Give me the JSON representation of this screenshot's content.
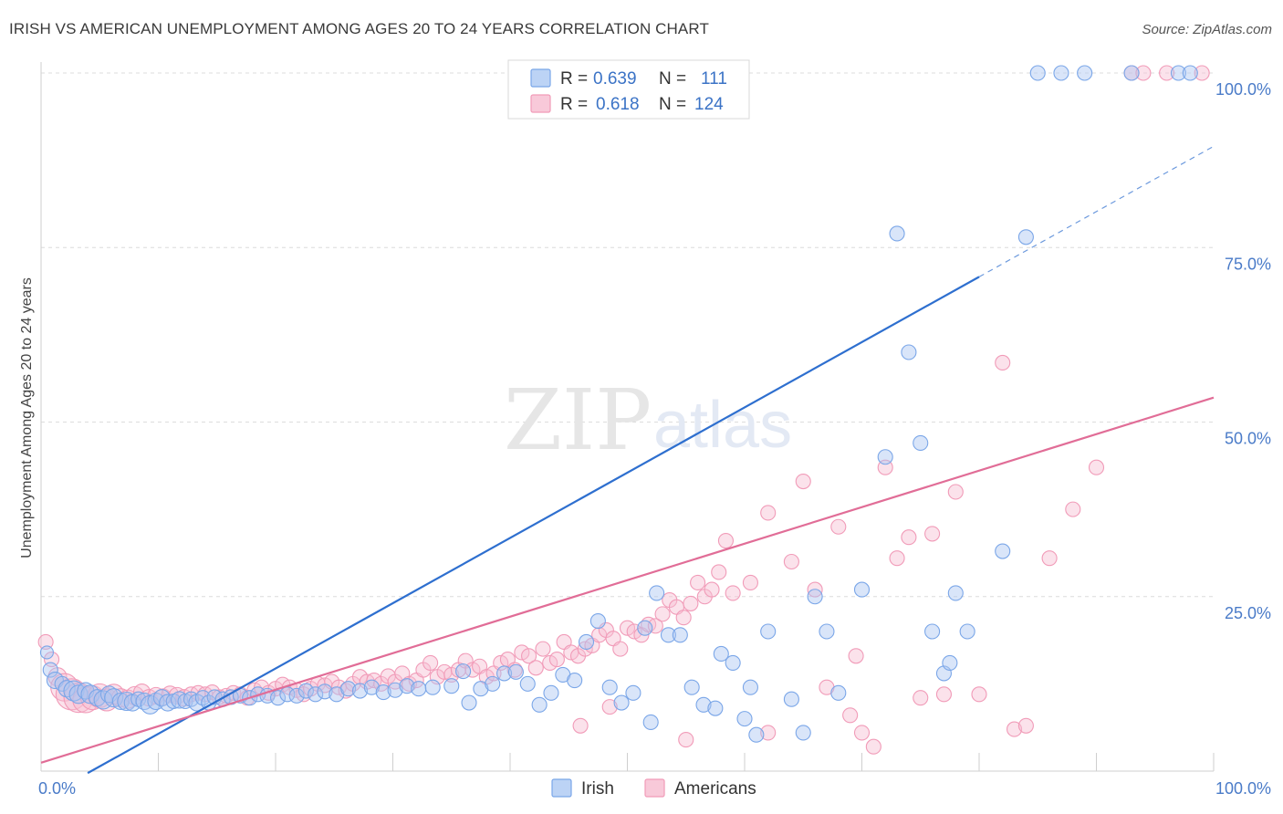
{
  "title": "IRISH VS AMERICAN UNEMPLOYMENT AMONG AGES 20 TO 24 YEARS CORRELATION CHART",
  "source": "Source: ZipAtlas.com",
  "watermark": {
    "zip": "ZIP",
    "atlas": "atlas"
  },
  "legend_top": [
    {
      "r_label": "R =",
      "r_value": "0.639",
      "n_label": "N =",
      "n_value": "111",
      "color": "#7aa6e8"
    },
    {
      "r_label": "R =",
      "r_value": "0.618",
      "n_label": "N =",
      "n_value": "124",
      "color": "#f19bb8"
    }
  ],
  "legend_bottom": [
    {
      "label": "Irish",
      "color": "#7aa6e8"
    },
    {
      "label": "Americans",
      "color": "#f19bb8"
    }
  ],
  "chart_data": {
    "type": "scatter",
    "title": "IRISH VS AMERICAN UNEMPLOYMENT AMONG AGES 20 TO 24 YEARS CORRELATION CHART",
    "xlabel": "",
    "ylabel": "Unemployment Among Ages 20 to 24 years",
    "xlim": [
      0,
      100
    ],
    "ylim": [
      0,
      100
    ],
    "x_tick_labels": [
      "0.0%",
      "100.0%"
    ],
    "y_tick_labels": [
      "25.0%",
      "50.0%",
      "75.0%",
      "100.0%"
    ],
    "y_ticks": [
      25,
      50,
      75,
      100
    ],
    "series": [
      {
        "name": "Irish",
        "color": "#7aa6e8",
        "trend_color": "#2e6fcf",
        "trend": {
          "x0": 0,
          "y0": -4.0,
          "x1": 80,
          "y1": 70.8,
          "dash_to_x": 100,
          "dash_to_y": 89.5
        },
        "points": [
          [
            0.5,
            17,
            6
          ],
          [
            0.8,
            14.5,
            7
          ],
          [
            1.2,
            13,
            8
          ],
          [
            1.8,
            12.5,
            7
          ],
          [
            2.2,
            11.8,
            8
          ],
          [
            2.8,
            11.5,
            10
          ],
          [
            3.2,
            11,
            9
          ],
          [
            3.8,
            11.5,
            8
          ],
          [
            4.2,
            11,
            9
          ],
          [
            4.8,
            10.5,
            8
          ],
          [
            5.3,
            10.2,
            9
          ],
          [
            5.8,
            11,
            8
          ],
          [
            6.2,
            10.5,
            9
          ],
          [
            6.8,
            10,
            8
          ],
          [
            7.3,
            10,
            9
          ],
          [
            7.8,
            9.8,
            8
          ],
          [
            8.3,
            10.3,
            7
          ],
          [
            8.8,
            10,
            8
          ],
          [
            9.3,
            9.5,
            9
          ],
          [
            9.8,
            10,
            8
          ],
          [
            10.3,
            10.5,
            8
          ],
          [
            10.8,
            9.8,
            8
          ],
          [
            11.3,
            10,
            7
          ],
          [
            11.8,
            10.2,
            8
          ],
          [
            12.3,
            10,
            7
          ],
          [
            12.8,
            10.3,
            7
          ],
          [
            13.3,
            9.8,
            8
          ],
          [
            13.8,
            10.5,
            7
          ],
          [
            14.3,
            9.8,
            7
          ],
          [
            14.8,
            10.6,
            7
          ],
          [
            15.5,
            10.3,
            7
          ],
          [
            16.2,
            10.6,
            7
          ],
          [
            17,
            10.8,
            7
          ],
          [
            17.8,
            10.5,
            7
          ],
          [
            18.5,
            11,
            7
          ],
          [
            19.3,
            10.8,
            7
          ],
          [
            20.2,
            10.5,
            7
          ],
          [
            21,
            11,
            7
          ],
          [
            21.8,
            10.8,
            7
          ],
          [
            22.6,
            11.5,
            7
          ],
          [
            23.4,
            11,
            7
          ],
          [
            24.2,
            11.4,
            7
          ],
          [
            25.2,
            11,
            7
          ],
          [
            26.2,
            11.8,
            7
          ],
          [
            27.2,
            11.5,
            7
          ],
          [
            28.2,
            12,
            7
          ],
          [
            29.2,
            11.3,
            7
          ],
          [
            30.2,
            11.6,
            7
          ],
          [
            31.2,
            12.2,
            7
          ],
          [
            32.2,
            11.8,
            7
          ],
          [
            33.4,
            12,
            7
          ],
          [
            35,
            12.2,
            7
          ],
          [
            36,
            14.3,
            7
          ],
          [
            36.5,
            9.8,
            7
          ],
          [
            37.5,
            11.8,
            7
          ],
          [
            38.5,
            12.5,
            7
          ],
          [
            39.5,
            14,
            7
          ],
          [
            40.5,
            14.2,
            7
          ],
          [
            41.5,
            12.5,
            7
          ],
          [
            42.5,
            9.5,
            7
          ],
          [
            43.5,
            11.2,
            7
          ],
          [
            44.5,
            13.8,
            7
          ],
          [
            45.5,
            13,
            7
          ],
          [
            46.5,
            18.5,
            7
          ],
          [
            47.5,
            21.5,
            7
          ],
          [
            48.5,
            12,
            7
          ],
          [
            49.5,
            9.8,
            7
          ],
          [
            50.5,
            11.2,
            7
          ],
          [
            51.5,
            20.5,
            7
          ],
          [
            52,
            7,
            7
          ],
          [
            52.5,
            25.5,
            7
          ],
          [
            53.5,
            19.5,
            7
          ],
          [
            54.5,
            19.5,
            7
          ],
          [
            55.5,
            12,
            7
          ],
          [
            56.5,
            9.5,
            7
          ],
          [
            57.5,
            9,
            7
          ],
          [
            58,
            16.8,
            7
          ],
          [
            59,
            15.5,
            7
          ],
          [
            60,
            7.5,
            7
          ],
          [
            60.5,
            12,
            7
          ],
          [
            61,
            5.2,
            7
          ],
          [
            62,
            20,
            7
          ],
          [
            64,
            10.3,
            7
          ],
          [
            65,
            5.5,
            7
          ],
          [
            66,
            25,
            7
          ],
          [
            67,
            20,
            7
          ],
          [
            68,
            11.2,
            7
          ],
          [
            70,
            26,
            7
          ],
          [
            72,
            45,
            7
          ],
          [
            73,
            77,
            7
          ],
          [
            74,
            60,
            7
          ],
          [
            75,
            47,
            7
          ],
          [
            76,
            20,
            7
          ],
          [
            77,
            14,
            7
          ],
          [
            77.5,
            15.5,
            7
          ],
          [
            78,
            25.5,
            7
          ],
          [
            79,
            20,
            7
          ],
          [
            82,
            31.5,
            7
          ],
          [
            84,
            76.5,
            7
          ],
          [
            85,
            100,
            7
          ],
          [
            87,
            100,
            7
          ],
          [
            89,
            100,
            7
          ],
          [
            93,
            100,
            7
          ],
          [
            97,
            100,
            7
          ],
          [
            98,
            100,
            7
          ]
        ]
      },
      {
        "name": "Americans",
        "color": "#f19bb8",
        "trend_color": "#e16d97",
        "trend": {
          "x0": 0,
          "y0": 1.2,
          "x1": 100,
          "y1": 53.5
        },
        "points": [
          [
            0.4,
            18.5,
            7
          ],
          [
            0.9,
            16,
            7
          ],
          [
            1.4,
            13.5,
            9
          ],
          [
            2,
            12,
            14
          ],
          [
            2.6,
            11,
            16
          ],
          [
            3.2,
            10.5,
            15
          ],
          [
            3.8,
            10.2,
            13
          ],
          [
            4.4,
            10.5,
            12
          ],
          [
            5,
            10.8,
            12
          ],
          [
            5.6,
            10.2,
            11
          ],
          [
            6.2,
            11,
            10
          ],
          [
            6.8,
            10.5,
            9
          ],
          [
            7.4,
            10.3,
            9
          ],
          [
            8,
            10.8,
            9
          ],
          [
            8.6,
            11.3,
            8
          ],
          [
            9.2,
            10.5,
            8
          ],
          [
            9.8,
            10.8,
            8
          ],
          [
            10.4,
            10.6,
            8
          ],
          [
            11,
            11,
            8
          ],
          [
            11.6,
            10.8,
            8
          ],
          [
            12.2,
            10.5,
            8
          ],
          [
            12.8,
            11,
            7
          ],
          [
            13.4,
            11.2,
            7
          ],
          [
            14,
            11,
            7
          ],
          [
            14.6,
            11.3,
            7
          ],
          [
            15.2,
            10.6,
            7
          ],
          [
            15.8,
            10.8,
            7
          ],
          [
            16.4,
            11.2,
            7
          ],
          [
            17,
            11,
            7
          ],
          [
            17.6,
            10.5,
            7
          ],
          [
            18.2,
            11.6,
            7
          ],
          [
            18.8,
            12,
            7
          ],
          [
            19.4,
            11.2,
            7
          ],
          [
            20,
            11.8,
            7
          ],
          [
            20.6,
            12.4,
            7
          ],
          [
            21.2,
            12,
            7
          ],
          [
            21.8,
            11.6,
            7
          ],
          [
            22.4,
            11,
            7
          ],
          [
            23,
            11.8,
            7
          ],
          [
            23.6,
            12.5,
            7
          ],
          [
            24.2,
            12.3,
            7
          ],
          [
            24.8,
            12.8,
            7
          ],
          [
            25.4,
            12,
            7
          ],
          [
            26,
            11.5,
            7
          ],
          [
            26.6,
            12.5,
            7
          ],
          [
            27.2,
            13.5,
            7
          ],
          [
            27.8,
            12.8,
            7
          ],
          [
            28.4,
            13,
            7
          ],
          [
            29,
            12.5,
            7
          ],
          [
            29.6,
            13.6,
            7
          ],
          [
            30.2,
            12.8,
            7
          ],
          [
            30.8,
            14,
            7
          ],
          [
            31.4,
            12.5,
            7
          ],
          [
            32,
            13,
            7
          ],
          [
            32.6,
            14.5,
            7
          ],
          [
            33.2,
            15.5,
            7
          ],
          [
            33.8,
            13.5,
            7
          ],
          [
            34.4,
            14.2,
            7
          ],
          [
            35,
            13.8,
            7
          ],
          [
            35.6,
            14.5,
            7
          ],
          [
            36.2,
            15.8,
            7
          ],
          [
            36.8,
            14.5,
            7
          ],
          [
            37.4,
            15,
            7
          ],
          [
            38,
            13.5,
            7
          ],
          [
            38.6,
            14,
            7
          ],
          [
            39.2,
            15.5,
            7
          ],
          [
            39.8,
            16,
            7
          ],
          [
            40.4,
            14.5,
            7
          ],
          [
            41,
            17,
            7
          ],
          [
            41.6,
            16.5,
            7
          ],
          [
            42.2,
            14.8,
            7
          ],
          [
            42.8,
            17.5,
            7
          ],
          [
            43.4,
            15.5,
            7
          ],
          [
            44,
            16,
            7
          ],
          [
            44.6,
            18.5,
            7
          ],
          [
            45.2,
            17,
            7
          ],
          [
            45.8,
            16.5,
            7
          ],
          [
            46.4,
            17.5,
            7
          ],
          [
            47,
            18,
            7
          ],
          [
            47.6,
            19.5,
            7
          ],
          [
            48.2,
            20.2,
            7
          ],
          [
            48.8,
            19,
            7
          ],
          [
            49.4,
            17.5,
            7
          ],
          [
            50,
            20.5,
            7
          ],
          [
            50.6,
            20,
            7
          ],
          [
            51.2,
            19.5,
            7
          ],
          [
            51.8,
            21,
            7
          ],
          [
            52.4,
            20.8,
            7
          ],
          [
            53,
            22.5,
            7
          ],
          [
            53.6,
            24.5,
            7
          ],
          [
            54.2,
            23.5,
            7
          ],
          [
            54.8,
            22,
            7
          ],
          [
            55.4,
            24,
            7
          ],
          [
            56,
            27,
            7
          ],
          [
            56.6,
            25,
            7
          ],
          [
            57.2,
            26,
            7
          ],
          [
            57.8,
            28.5,
            7
          ],
          [
            58.4,
            33,
            7
          ],
          [
            59,
            25.5,
            7
          ],
          [
            60.5,
            27,
            7
          ],
          [
            62,
            37,
            7
          ],
          [
            64,
            30,
            7
          ],
          [
            65,
            41.5,
            7
          ],
          [
            66,
            26,
            7
          ],
          [
            67,
            12,
            7
          ],
          [
            68,
            35,
            7
          ],
          [
            69,
            8,
            7
          ],
          [
            69.5,
            16.5,
            7
          ],
          [
            70,
            5.5,
            7
          ],
          [
            71,
            3.5,
            7
          ],
          [
            72,
            43.5,
            7
          ],
          [
            73,
            30.5,
            7
          ],
          [
            74,
            33.5,
            7
          ],
          [
            75,
            10.5,
            7
          ],
          [
            76,
            34,
            7
          ],
          [
            77,
            11,
            7
          ],
          [
            78,
            40,
            7
          ],
          [
            80,
            11,
            7
          ],
          [
            82,
            58.5,
            7
          ],
          [
            83,
            6,
            7
          ],
          [
            84,
            6.5,
            7
          ],
          [
            86,
            30.5,
            7
          ],
          [
            88,
            37.5,
            7
          ],
          [
            90,
            43.5,
            7
          ],
          [
            93,
            100,
            7
          ],
          [
            94,
            100,
            7
          ],
          [
            96,
            100,
            7
          ],
          [
            99,
            100,
            7
          ],
          [
            48.5,
            9.2,
            7
          ],
          [
            46,
            6.5,
            7
          ],
          [
            55,
            4.5,
            7
          ],
          [
            62,
            5.5,
            7
          ]
        ]
      }
    ]
  }
}
